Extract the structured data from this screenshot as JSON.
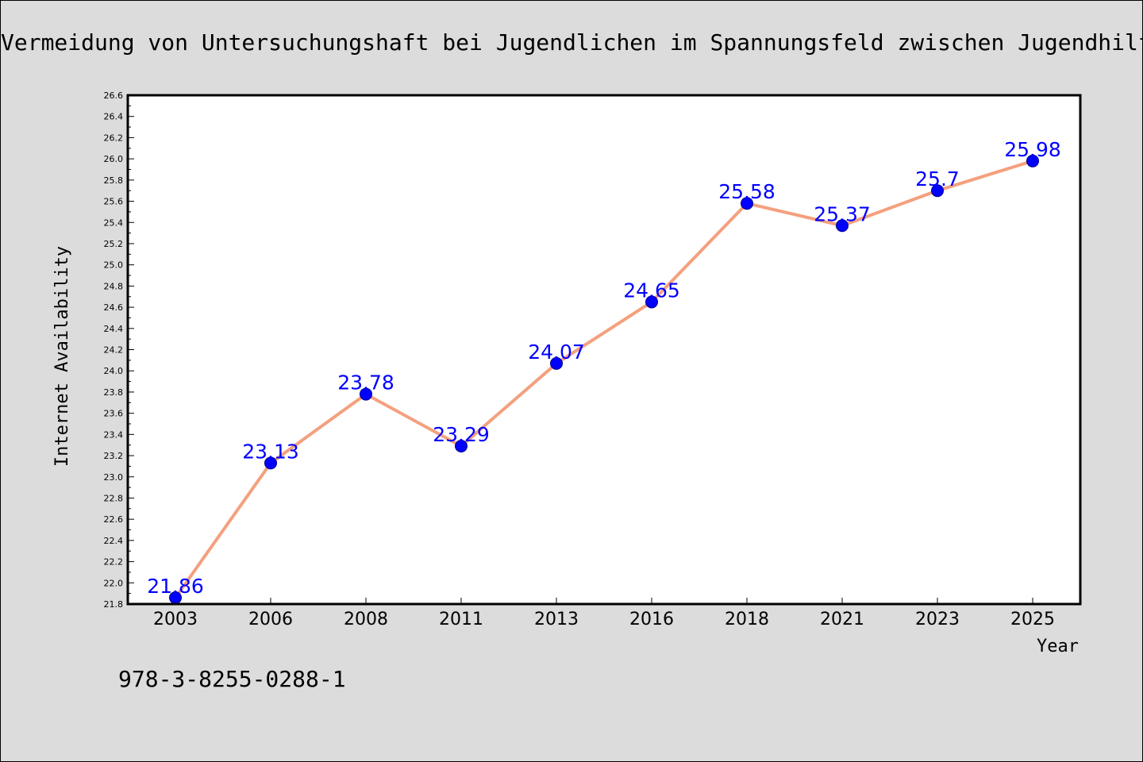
{
  "chart_data": {
    "type": "line",
    "title": "Vermeidung von Untersuchungshaft bei Jugendlichen im Spannungsfeld zwischen Jugendhilfe und Justiz",
    "xlabel": "Year",
    "ylabel": "Internet Availability",
    "categories": [
      "2003",
      "2006",
      "2008",
      "2011",
      "2013",
      "2016",
      "2018",
      "2021",
      "2023",
      "2025"
    ],
    "series": [
      {
        "values": [
          21.86,
          23.13,
          23.78,
          23.29,
          24.07,
          24.65,
          25.58,
          25.37,
          25.7,
          25.98
        ],
        "data_labels": [
          "21.86",
          "23.13",
          "23.78",
          "23.29",
          "24.07",
          "24.65",
          "25.58",
          "25.37",
          "25.7",
          "25.98"
        ]
      }
    ],
    "ylim": [
      21.8,
      26.6
    ],
    "yticks": [
      "21.8",
      "22.0",
      "22.2",
      "22.4",
      "22.6",
      "22.8",
      "23.0",
      "23.2",
      "23.4",
      "23.6",
      "23.8",
      "24.0",
      "24.2",
      "24.4",
      "24.6",
      "24.8",
      "25.0",
      "25.2",
      "25.4",
      "25.6",
      "25.8",
      "26.0",
      "26.2",
      "26.4",
      "26.6"
    ],
    "grid": false,
    "annotation": "978-3-8255-0288-1",
    "colors": {
      "line": "#f4a07e",
      "marker": "#0000ff",
      "data_label": "#0000ff",
      "background": "#dcdcdc",
      "plot_background": "#ffffff"
    }
  }
}
